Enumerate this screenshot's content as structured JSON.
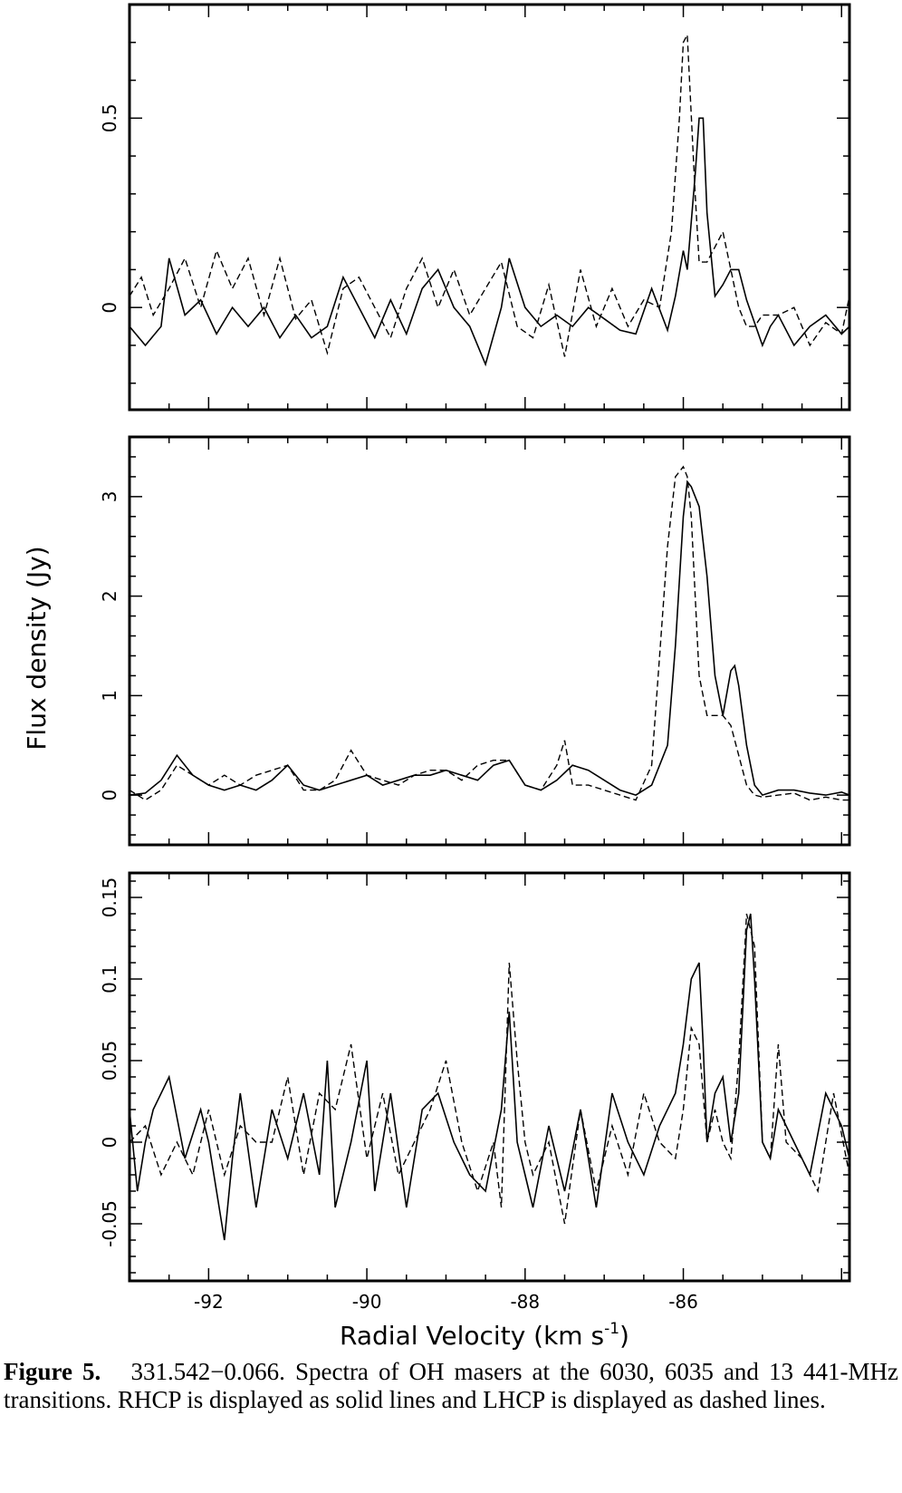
{
  "chart_data": {
    "type": "line",
    "xlabel": "Radial Velocity (km s",
    "xlabel_sup": "-1",
    "xlabel_close": ")",
    "ylabel": "Flux density (Jy)",
    "xlim": [
      -93.0,
      -83.9
    ],
    "xticks": [
      -92,
      -90,
      -88,
      -86
    ],
    "xtick_labels": [
      "-92",
      "-90",
      "-88",
      "-86"
    ],
    "series_styles": {
      "RHCP": "solid",
      "LHCP": "dashed"
    },
    "panels": [
      {
        "ylim": [
          -0.27,
          0.8
        ],
        "yticks": [
          0,
          0.5
        ],
        "ytick_labels": [
          "0",
          "0.5"
        ],
        "series": [
          {
            "style": "solid",
            "x": [
              -93.0,
              -92.8,
              -92.6,
              -92.5,
              -92.3,
              -92.1,
              -91.9,
              -91.7,
              -91.5,
              -91.3,
              -91.1,
              -90.9,
              -90.7,
              -90.5,
              -90.3,
              -90.1,
              -89.9,
              -89.7,
              -89.5,
              -89.3,
              -89.1,
              -88.9,
              -88.7,
              -88.5,
              -88.3,
              -88.2,
              -88.0,
              -87.8,
              -87.6,
              -87.4,
              -87.2,
              -87.0,
              -86.8,
              -86.6,
              -86.4,
              -86.2,
              -86.1,
              -86.0,
              -85.95,
              -85.85,
              -85.8,
              -85.75,
              -85.7,
              -85.6,
              -85.5,
              -85.4,
              -85.3,
              -85.2,
              -85.0,
              -84.9,
              -84.8,
              -84.6,
              -84.4,
              -84.2,
              -84.0,
              -83.9
            ],
            "y": [
              -0.05,
              -0.1,
              -0.05,
              0.13,
              -0.02,
              0.02,
              -0.07,
              0.0,
              -0.05,
              0.0,
              -0.08,
              -0.02,
              -0.08,
              -0.05,
              0.08,
              0.0,
              -0.08,
              0.02,
              -0.07,
              0.05,
              0.1,
              0.0,
              -0.05,
              -0.15,
              0.0,
              0.13,
              0.0,
              -0.05,
              -0.02,
              -0.05,
              0.0,
              -0.03,
              -0.06,
              -0.07,
              0.05,
              -0.06,
              0.03,
              0.15,
              0.1,
              0.35,
              0.5,
              0.5,
              0.25,
              0.03,
              0.06,
              0.1,
              0.1,
              0.02,
              -0.1,
              -0.05,
              -0.02,
              -0.1,
              -0.05,
              -0.02,
              -0.07,
              -0.05
            ]
          },
          {
            "style": "dashed",
            "x": [
              -93.0,
              -92.85,
              -92.7,
              -92.5,
              -92.3,
              -92.1,
              -91.9,
              -91.7,
              -91.5,
              -91.3,
              -91.1,
              -90.9,
              -90.7,
              -90.5,
              -90.3,
              -90.1,
              -89.9,
              -89.7,
              -89.5,
              -89.3,
              -89.1,
              -88.9,
              -88.7,
              -88.5,
              -88.3,
              -88.1,
              -87.9,
              -87.7,
              -87.5,
              -87.3,
              -87.1,
              -86.9,
              -86.7,
              -86.5,
              -86.3,
              -86.15,
              -86.05,
              -86.0,
              -85.95,
              -85.85,
              -85.8,
              -85.7,
              -85.6,
              -85.5,
              -85.4,
              -85.3,
              -85.2,
              -85.1,
              -85.0,
              -84.8,
              -84.6,
              -84.4,
              -84.2,
              -84.0,
              -83.9
            ],
            "y": [
              0.03,
              0.08,
              -0.02,
              0.05,
              0.13,
              0.0,
              0.15,
              0.05,
              0.13,
              -0.02,
              0.13,
              -0.03,
              0.02,
              -0.12,
              0.05,
              0.08,
              0.0,
              -0.08,
              0.05,
              0.13,
              0.0,
              0.1,
              -0.02,
              0.05,
              0.12,
              -0.05,
              -0.08,
              0.06,
              -0.13,
              0.1,
              -0.05,
              0.05,
              -0.05,
              0.02,
              0.0,
              0.2,
              0.5,
              0.7,
              0.72,
              0.3,
              0.12,
              0.12,
              0.16,
              0.2,
              0.1,
              0.0,
              -0.05,
              -0.05,
              -0.02,
              -0.02,
              0.0,
              -0.1,
              -0.04,
              -0.07,
              0.03
            ]
          }
        ]
      },
      {
        "ylim": [
          -0.5,
          3.6
        ],
        "yticks": [
          0,
          1,
          2,
          3
        ],
        "ytick_labels": [
          "0",
          "1",
          "2",
          "3"
        ],
        "series": [
          {
            "style": "solid",
            "x": [
              -93.0,
              -92.8,
              -92.6,
              -92.4,
              -92.2,
              -92.0,
              -91.8,
              -91.6,
              -91.4,
              -91.2,
              -91.0,
              -90.8,
              -90.6,
              -90.4,
              -90.2,
              -90.0,
              -89.8,
              -89.6,
              -89.4,
              -89.2,
              -89.0,
              -88.8,
              -88.6,
              -88.4,
              -88.2,
              -88.0,
              -87.8,
              -87.6,
              -87.4,
              -87.2,
              -87.0,
              -86.8,
              -86.6,
              -86.4,
              -86.2,
              -86.1,
              -86.0,
              -85.95,
              -85.9,
              -85.8,
              -85.7,
              -85.6,
              -85.5,
              -85.4,
              -85.35,
              -85.3,
              -85.2,
              -85.1,
              -85.0,
              -84.8,
              -84.6,
              -84.4,
              -84.2,
              -84.0,
              -83.9
            ],
            "y": [
              0.0,
              0.02,
              0.15,
              0.4,
              0.2,
              0.1,
              0.05,
              0.1,
              0.05,
              0.15,
              0.3,
              0.1,
              0.05,
              0.1,
              0.15,
              0.2,
              0.1,
              0.15,
              0.2,
              0.2,
              0.25,
              0.2,
              0.15,
              0.3,
              0.35,
              0.1,
              0.05,
              0.15,
              0.3,
              0.25,
              0.15,
              0.05,
              0.0,
              0.1,
              0.5,
              1.5,
              2.8,
              3.15,
              3.1,
              2.9,
              2.2,
              1.2,
              0.8,
              1.25,
              1.3,
              1.1,
              0.5,
              0.1,
              0.0,
              0.05,
              0.05,
              0.02,
              0.0,
              0.03,
              0.0
            ]
          },
          {
            "style": "dashed",
            "x": [
              -93.0,
              -92.8,
              -92.6,
              -92.4,
              -92.2,
              -92.0,
              -91.8,
              -91.6,
              -91.4,
              -91.2,
              -91.0,
              -90.8,
              -90.6,
              -90.4,
              -90.2,
              -90.0,
              -89.8,
              -89.6,
              -89.4,
              -89.2,
              -89.0,
              -88.8,
              -88.6,
              -88.4,
              -88.2,
              -88.0,
              -87.8,
              -87.6,
              -87.5,
              -87.4,
              -87.2,
              -87.0,
              -86.8,
              -86.6,
              -86.4,
              -86.2,
              -86.1,
              -86.0,
              -85.95,
              -85.9,
              -85.8,
              -85.7,
              -85.6,
              -85.5,
              -85.4,
              -85.3,
              -85.2,
              -85.1,
              -85.0,
              -84.8,
              -84.6,
              -84.4,
              -84.2,
              -84.0,
              -83.9
            ],
            "y": [
              0.05,
              -0.05,
              0.05,
              0.3,
              0.2,
              0.1,
              0.2,
              0.1,
              0.2,
              0.25,
              0.3,
              0.05,
              0.05,
              0.15,
              0.45,
              0.2,
              0.15,
              0.1,
              0.2,
              0.25,
              0.25,
              0.15,
              0.3,
              0.35,
              0.35,
              0.1,
              0.05,
              0.3,
              0.55,
              0.1,
              0.1,
              0.05,
              0.0,
              -0.05,
              0.3,
              2.5,
              3.2,
              3.3,
              3.2,
              2.8,
              1.2,
              0.8,
              0.8,
              0.8,
              0.7,
              0.4,
              0.1,
              0.0,
              -0.02,
              0.0,
              0.02,
              -0.05,
              -0.02,
              -0.05,
              -0.05
            ]
          }
        ]
      },
      {
        "ylim": [
          -0.085,
          0.165
        ],
        "yticks": [
          -0.05,
          0,
          0.05,
          0.1,
          0.15
        ],
        "ytick_labels": [
          "-0.05",
          "0",
          "0.05",
          "0.1",
          "0.15"
        ],
        "series": [
          {
            "style": "solid",
            "x": [
              -93.0,
              -92.9,
              -92.8,
              -92.7,
              -92.5,
              -92.3,
              -92.1,
              -92.0,
              -91.9,
              -91.8,
              -91.7,
              -91.6,
              -91.4,
              -91.2,
              -91.0,
              -90.8,
              -90.6,
              -90.5,
              -90.4,
              -90.2,
              -90.0,
              -89.9,
              -89.7,
              -89.5,
              -89.3,
              -89.1,
              -88.9,
              -88.7,
              -88.5,
              -88.3,
              -88.2,
              -88.1,
              -88.0,
              -87.9,
              -87.7,
              -87.5,
              -87.3,
              -87.1,
              -86.9,
              -86.7,
              -86.5,
              -86.3,
              -86.1,
              -86.0,
              -85.9,
              -85.8,
              -85.75,
              -85.7,
              -85.6,
              -85.5,
              -85.4,
              -85.3,
              -85.2,
              -85.15,
              -85.1,
              -85.0,
              -84.9,
              -84.8,
              -84.6,
              -84.4,
              -84.2,
              -84.0,
              -83.9
            ],
            "y": [
              0.02,
              -0.03,
              0.0,
              0.02,
              0.04,
              -0.01,
              0.02,
              0.0,
              -0.03,
              -0.06,
              -0.01,
              0.03,
              -0.04,
              0.02,
              -0.01,
              0.03,
              -0.02,
              0.05,
              -0.04,
              0.0,
              0.05,
              -0.03,
              0.03,
              -0.04,
              0.02,
              0.03,
              0.0,
              -0.02,
              -0.03,
              0.02,
              0.08,
              0.0,
              -0.02,
              -0.04,
              0.01,
              -0.03,
              0.02,
              -0.04,
              0.03,
              0.0,
              -0.02,
              0.01,
              0.03,
              0.06,
              0.1,
              0.11,
              0.06,
              0.0,
              0.03,
              0.04,
              0.0,
              0.03,
              0.13,
              0.14,
              0.1,
              0.0,
              -0.01,
              0.02,
              0.0,
              -0.02,
              0.03,
              0.01,
              -0.01
            ]
          },
          {
            "style": "dashed",
            "x": [
              -93.0,
              -92.8,
              -92.6,
              -92.4,
              -92.2,
              -92.0,
              -91.8,
              -91.6,
              -91.4,
              -91.2,
              -91.0,
              -90.8,
              -90.6,
              -90.4,
              -90.2,
              -90.0,
              -89.8,
              -89.6,
              -89.4,
              -89.2,
              -89.0,
              -88.8,
              -88.6,
              -88.4,
              -88.3,
              -88.2,
              -88.1,
              -88.0,
              -87.9,
              -87.7,
              -87.5,
              -87.3,
              -87.1,
              -86.9,
              -86.7,
              -86.5,
              -86.3,
              -86.1,
              -86.0,
              -85.9,
              -85.8,
              -85.7,
              -85.6,
              -85.5,
              -85.4,
              -85.3,
              -85.2,
              -85.1,
              -85.0,
              -84.9,
              -84.8,
              -84.7,
              -84.5,
              -84.3,
              -84.1,
              -83.9
            ],
            "y": [
              0.0,
              0.01,
              -0.02,
              0.0,
              -0.02,
              0.02,
              -0.02,
              0.01,
              0.0,
              0.0,
              0.04,
              -0.02,
              0.03,
              0.02,
              0.06,
              -0.01,
              0.03,
              -0.02,
              0.0,
              0.02,
              0.05,
              0.0,
              -0.03,
              0.0,
              -0.04,
              0.11,
              0.05,
              0.0,
              -0.02,
              0.0,
              -0.05,
              0.02,
              -0.03,
              0.01,
              -0.02,
              0.03,
              0.0,
              -0.01,
              0.02,
              0.07,
              0.06,
              0.0,
              0.02,
              0.0,
              -0.01,
              0.05,
              0.14,
              0.12,
              0.0,
              -0.01,
              0.06,
              0.0,
              -0.01,
              -0.03,
              0.03,
              -0.02
            ]
          }
        ]
      }
    ]
  },
  "caption": {
    "label": "Figure 5.",
    "text": "331.542−0.066. Spectra of OH masers at the 6030, 6035 and 13 441-MHz transitions. RHCP is displayed as solid lines and LHCP is displayed as dashed lines."
  }
}
